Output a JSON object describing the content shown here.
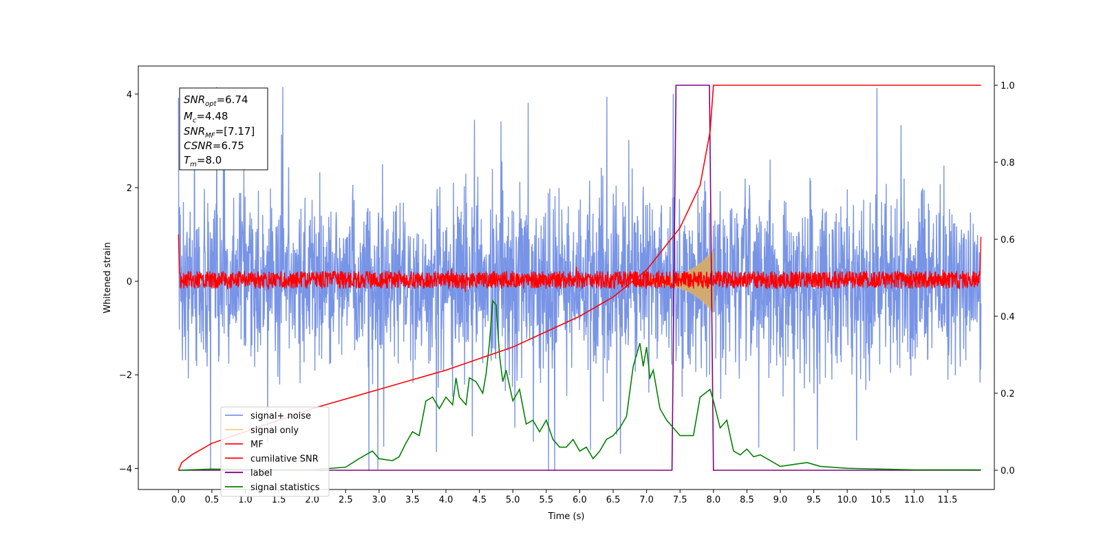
{
  "chart_data": {
    "type": "line",
    "title": "",
    "xlabel": "Time (s)",
    "ylabel": "Whitened strain",
    "xlim": [
      -0.6,
      12.2
    ],
    "ylim_left": [
      -4.45,
      4.6
    ],
    "ylim_right": [
      -0.05,
      1.05
    ],
    "x_ticks": [
      "0.0",
      "0.5",
      "1.0",
      "1.5",
      "2.0",
      "2.5",
      "3.0",
      "3.5",
      "4.0",
      "4.5",
      "5.0",
      "5.5",
      "6.0",
      "6.5",
      "7.0",
      "7.5",
      "8.0",
      "8.5",
      "9.0",
      "9.5",
      "10.0",
      "10.5",
      "11.0",
      "11.5"
    ],
    "y_ticks_left": [
      "−4",
      "−2",
      "0",
      "2",
      "4"
    ],
    "y_ticks_right": [
      "0.0",
      "0.2",
      "0.4",
      "0.6",
      "0.8",
      "1.0"
    ],
    "grid": false,
    "legend_location": "lower-left",
    "info_box": {
      "snr_opt": {
        "sym": "SNR",
        "sub": "opt",
        "val": "=6.74"
      },
      "mc": {
        "sym": "M",
        "sub": "c",
        "val": "=4.48"
      },
      "snr_mf": {
        "sym": "SNR",
        "sub": "MF",
        "val": "=[7.17]"
      },
      "csnr": {
        "sym": "CSNR",
        "sub": "",
        "val": "=6.75"
      },
      "tm": {
        "sym": "T",
        "sub": "m",
        "val": "=8.0"
      }
    },
    "series": [
      {
        "name": "signal+ noise",
        "axis": "left",
        "color": "#7894e6",
        "description": "whitened noisy strain, roughly ±2.5 with peaks near ±4, from 0.0 to 12.0 s"
      },
      {
        "name": "signal only",
        "axis": "left",
        "color": "#f2d08c",
        "description": "chirp amplitude growing to about ±0.7 near 8.0 s, then zero"
      },
      {
        "name": "MF",
        "axis": "left",
        "color": "#ff0000",
        "description": "matched filter output, around 0 with amplitude about ±0.2; edges reach ±1"
      },
      {
        "name": "cumilative SNR",
        "axis": "right",
        "color": "#ff0000",
        "points": [
          [
            0,
            0
          ],
          [
            0.05,
            0.02
          ],
          [
            0.2,
            0.04
          ],
          [
            0.5,
            0.07
          ],
          [
            1.0,
            0.1
          ],
          [
            1.5,
            0.13
          ],
          [
            2.0,
            0.16
          ],
          [
            2.5,
            0.185
          ],
          [
            3.0,
            0.21
          ],
          [
            3.5,
            0.235
          ],
          [
            4.0,
            0.26
          ],
          [
            4.5,
            0.29
          ],
          [
            5.0,
            0.32
          ],
          [
            5.5,
            0.36
          ],
          [
            6.0,
            0.4
          ],
          [
            6.5,
            0.45
          ],
          [
            7.0,
            0.52
          ],
          [
            7.5,
            0.63
          ],
          [
            7.8,
            0.74
          ],
          [
            7.95,
            0.88
          ],
          [
            8.0,
            1.0
          ],
          [
            12.0,
            1.0
          ]
        ]
      },
      {
        "name": "label",
        "axis": "right",
        "color": "#800080",
        "points": [
          [
            0,
            0
          ],
          [
            7.38,
            0
          ],
          [
            7.44,
            1.0
          ],
          [
            7.94,
            1.0
          ],
          [
            8.0,
            0
          ],
          [
            12.0,
            0
          ]
        ]
      },
      {
        "name": "signal statistics",
        "axis": "right",
        "color": "#008000",
        "points": [
          [
            0,
            0
          ],
          [
            0.5,
            0.003
          ],
          [
            1.0,
            0.002
          ],
          [
            1.5,
            0.001
          ],
          [
            2.0,
            0.001
          ],
          [
            2.5,
            0.008
          ],
          [
            2.7,
            0.03
          ],
          [
            2.8,
            0.04
          ],
          [
            2.9,
            0.05
          ],
          [
            3.0,
            0.03
          ],
          [
            3.2,
            0.025
          ],
          [
            3.3,
            0.035
          ],
          [
            3.4,
            0.07
          ],
          [
            3.5,
            0.1
          ],
          [
            3.6,
            0.09
          ],
          [
            3.7,
            0.18
          ],
          [
            3.8,
            0.19
          ],
          [
            3.9,
            0.16
          ],
          [
            4.0,
            0.19
          ],
          [
            4.1,
            0.17
          ],
          [
            4.15,
            0.24
          ],
          [
            4.2,
            0.19
          ],
          [
            4.3,
            0.17
          ],
          [
            4.35,
            0.24
          ],
          [
            4.45,
            0.23
          ],
          [
            4.55,
            0.2
          ],
          [
            4.6,
            0.25
          ],
          [
            4.65,
            0.33
          ],
          [
            4.7,
            0.44
          ],
          [
            4.75,
            0.43
          ],
          [
            4.8,
            0.3
          ],
          [
            4.85,
            0.23
          ],
          [
            4.9,
            0.26
          ],
          [
            5.0,
            0.18
          ],
          [
            5.1,
            0.21
          ],
          [
            5.2,
            0.12
          ],
          [
            5.3,
            0.13
          ],
          [
            5.4,
            0.1
          ],
          [
            5.5,
            0.13
          ],
          [
            5.6,
            0.08
          ],
          [
            5.7,
            0.06
          ],
          [
            5.8,
            0.06
          ],
          [
            5.9,
            0.08
          ],
          [
            6.0,
            0.05
          ],
          [
            6.1,
            0.06
          ],
          [
            6.2,
            0.03
          ],
          [
            6.3,
            0.05
          ],
          [
            6.4,
            0.08
          ],
          [
            6.5,
            0.09
          ],
          [
            6.6,
            0.11
          ],
          [
            6.7,
            0.14
          ],
          [
            6.8,
            0.27
          ],
          [
            6.9,
            0.33
          ],
          [
            6.95,
            0.27
          ],
          [
            7.0,
            0.32
          ],
          [
            7.05,
            0.24
          ],
          [
            7.1,
            0.26
          ],
          [
            7.2,
            0.16
          ],
          [
            7.3,
            0.13
          ],
          [
            7.5,
            0.09
          ],
          [
            7.7,
            0.09
          ],
          [
            7.8,
            0.19
          ],
          [
            7.95,
            0.21
          ],
          [
            8.0,
            0.18
          ],
          [
            8.1,
            0.11
          ],
          [
            8.2,
            0.13
          ],
          [
            8.3,
            0.05
          ],
          [
            8.4,
            0.04
          ],
          [
            8.5,
            0.055
          ],
          [
            8.6,
            0.035
          ],
          [
            8.7,
            0.04
          ],
          [
            8.8,
            0.03
          ],
          [
            9.0,
            0.01
          ],
          [
            9.2,
            0.015
          ],
          [
            9.4,
            0.02
          ],
          [
            9.6,
            0.01
          ],
          [
            10.0,
            0.005
          ],
          [
            10.5,
            0.003
          ],
          [
            11.0,
            0.001
          ],
          [
            12.0,
            0.001
          ]
        ]
      }
    ]
  }
}
